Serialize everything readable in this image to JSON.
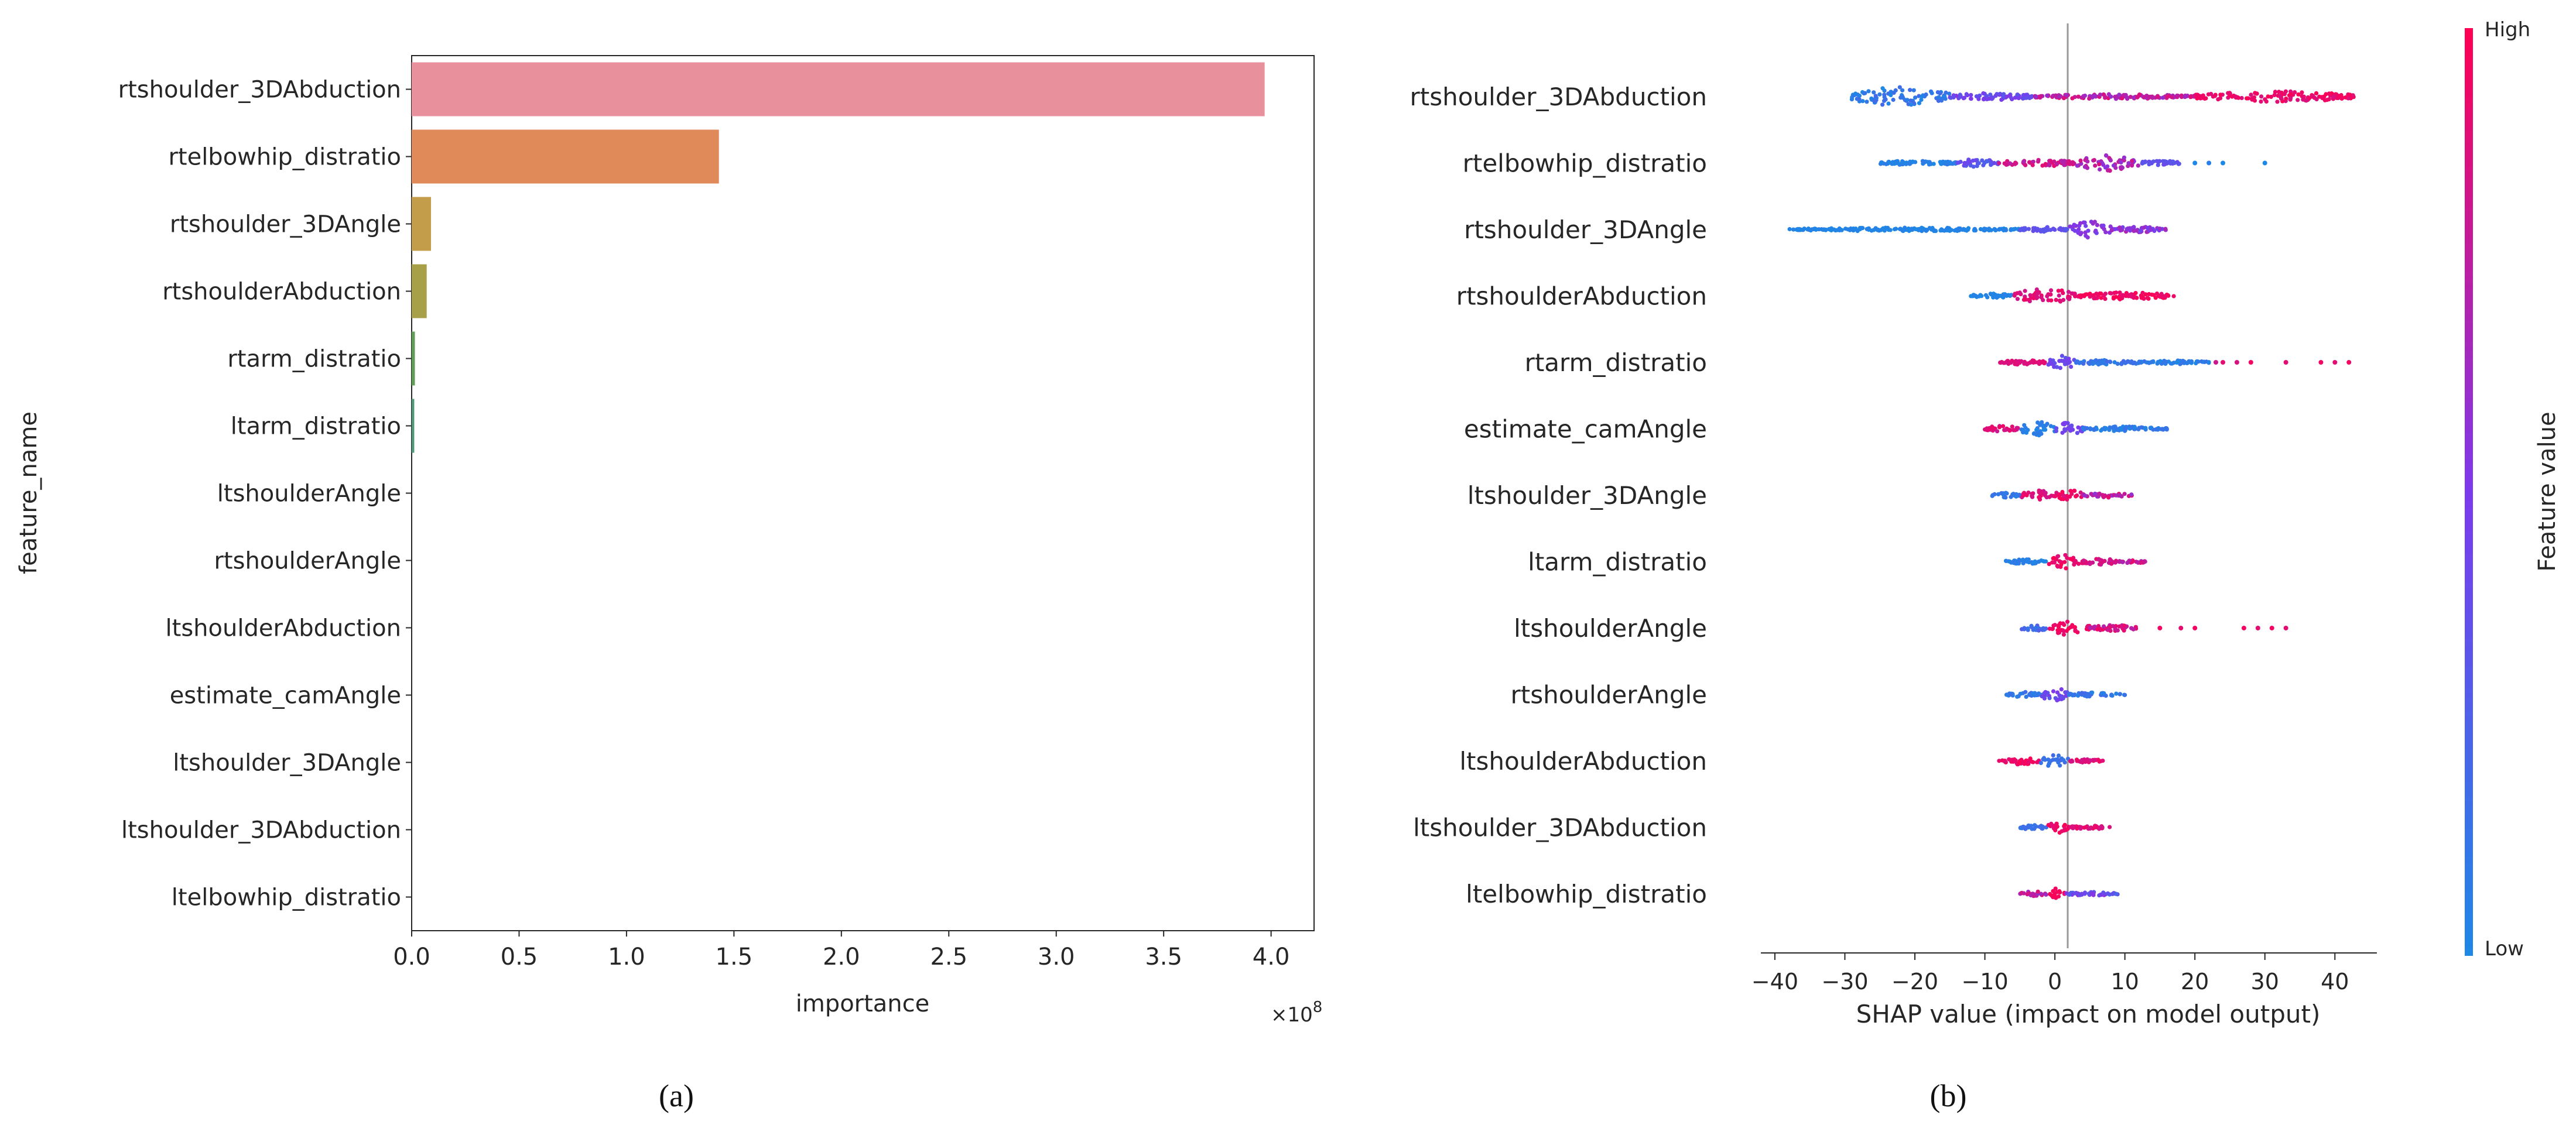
{
  "chart_data": [
    {
      "type": "bar",
      "orientation": "horizontal",
      "panel_label": "(a)",
      "xlabel": "importance",
      "ylabel": "feature_name",
      "x_multiplier": "×10",
      "x_multiplier_exponent": "8",
      "xlim": [
        0,
        4.2
      ],
      "x_ticks": [
        0.0,
        0.5,
        1.0,
        1.5,
        2.0,
        2.5,
        3.0,
        3.5,
        4.0
      ],
      "x_tick_labels": [
        "0.0",
        "0.5",
        "1.0",
        "1.5",
        "2.0",
        "2.5",
        "3.0",
        "3.5",
        "4.0"
      ],
      "grid": false,
      "categories": [
        "rtshoulder_3DAbduction",
        "rtelbowhip_distratio",
        "rtshoulder_3DAngle",
        "rtshoulderAbduction",
        "rtarm_distratio",
        "ltarm_distratio",
        "ltshoulderAngle",
        "rtshoulderAngle",
        "ltshoulderAbduction",
        "estimate_camAngle",
        "ltshoulder_3DAngle",
        "ltshoulder_3DAbduction",
        "ltelbowhip_distratio"
      ],
      "values": [
        3.97,
        1.43,
        0.09,
        0.07,
        0.015,
        0.012,
        0,
        0,
        0,
        0,
        0,
        0,
        0
      ],
      "colors": [
        "#e8909c",
        "#e08a5a",
        "#c49d4a",
        "#a8a048",
        "#5e9e55",
        "#4a9a78",
        "#4a9a90",
        "#4d98a8",
        "#5aa0c4",
        "#8a9ad6",
        "#b08ad6",
        "#d27ccc",
        "#e07ab0"
      ]
    },
    {
      "type": "scatter",
      "subtype": "shap_beeswarm",
      "panel_label": "(b)",
      "xlabel": "SHAP value (impact on model output)",
      "xlim": [
        -42,
        46
      ],
      "x_ticks": [
        -40,
        -30,
        -20,
        -10,
        0,
        10,
        20,
        30,
        40
      ],
      "x_tick_labels": [
        "−40",
        "−30",
        "−20",
        "−10",
        "0",
        "10",
        "20",
        "30",
        "40"
      ],
      "grid": false,
      "categories": [
        "rtshoulder_3DAbduction",
        "rtelbowhip_distratio",
        "rtshoulder_3DAngle",
        "rtshoulderAbduction",
        "rtarm_distratio",
        "estimate_camAngle",
        "ltshoulder_3DAngle",
        "ltarm_distratio",
        "ltshoulderAngle",
        "rtshoulderAngle",
        "ltshoulderAbduction",
        "ltshoulder_3DAbduction",
        "ltelbowhip_distratio"
      ],
      "series": [
        {
          "feature": "rtshoulder_3DAbduction",
          "segments": [
            [
              -29,
              -15,
              0.0,
              0.2,
              16
            ],
            [
              -15,
              -3,
              0.3,
              0.55,
              6
            ],
            [
              -3,
              20,
              0.6,
              0.9,
              4
            ],
            [
              20,
              43,
              0.85,
              1.0,
              9
            ]
          ],
          "outliers": []
        },
        {
          "feature": "rtelbowhip_distratio",
          "segments": [
            [
              -25,
              -14,
              0.0,
              0.1,
              4
            ],
            [
              -14,
              -8,
              0.2,
              0.45,
              7
            ],
            [
              -8,
              3,
              0.7,
              0.9,
              6
            ],
            [
              3,
              12,
              0.55,
              0.85,
              14
            ],
            [
              12,
              18,
              0.3,
              0.4,
              4
            ]
          ],
          "outliers": [
            [
              20,
              0.0
            ],
            [
              22,
              0.05
            ],
            [
              24,
              0.0
            ],
            [
              30,
              0.0
            ]
          ]
        },
        {
          "feature": "rtshoulder_3DAngle",
          "segments": [
            [
              -38,
              -5,
              0.0,
              0.05,
              3
            ],
            [
              -5,
              2,
              0.3,
              0.4,
              4
            ],
            [
              2,
              8,
              0.45,
              0.6,
              14
            ],
            [
              8,
              16,
              0.4,
              0.7,
              5
            ]
          ],
          "outliers": []
        },
        {
          "feature": "rtshoulderAbduction",
          "segments": [
            [
              -12,
              -6,
              0.0,
              0.05,
              4
            ],
            [
              -6,
              3,
              0.8,
              0.95,
              12
            ],
            [
              3,
              17,
              0.88,
              1.0,
              6
            ]
          ],
          "outliers": []
        },
        {
          "feature": "rtarm_distratio",
          "segments": [
            [
              -8,
              -1,
              0.85,
              0.9,
              4
            ],
            [
              -1,
              3,
              0.3,
              0.5,
              11
            ],
            [
              3,
              13,
              0.05,
              0.2,
              4
            ],
            [
              13,
              22,
              0.0,
              0.15,
              3
            ]
          ],
          "outliers": [
            [
              23,
              0.8
            ],
            [
              24,
              0.9
            ],
            [
              26,
              0.85
            ],
            [
              28,
              0.95
            ],
            [
              33,
              0.9
            ],
            [
              38,
              0.95
            ],
            [
              40,
              0.9
            ],
            [
              42,
              0.95
            ]
          ]
        },
        {
          "feature": "estimate_camAngle",
          "segments": [
            [
              -10,
              -5,
              0.75,
              0.95,
              5
            ],
            [
              -5,
              0,
              0.0,
              0.1,
              12
            ],
            [
              0,
              4,
              0.35,
              0.55,
              11
            ],
            [
              4,
              16,
              0.0,
              0.15,
              4
            ]
          ],
          "outliers": []
        },
        {
          "feature": "ltshoulder_3DAngle",
          "segments": [
            [
              -9,
              -5,
              0.05,
              0.15,
              4
            ],
            [
              -5,
              0,
              0.8,
              0.95,
              8
            ],
            [
              0,
              4,
              0.85,
              1.0,
              11
            ],
            [
              4,
              11,
              0.55,
              0.95,
              4
            ]
          ],
          "outliers": []
        },
        {
          "feature": "ltarm_distratio",
          "segments": [
            [
              -7,
              -1,
              0.0,
              0.1,
              4
            ],
            [
              -1,
              4,
              0.85,
              1.0,
              12
            ],
            [
              4,
              9,
              0.75,
              0.9,
              6
            ],
            [
              9,
              13,
              0.6,
              0.95,
              3
            ]
          ],
          "outliers": []
        },
        {
          "feature": "ltshoulderAngle",
          "segments": [
            [
              -5,
              -1,
              0.1,
              0.3,
              5
            ],
            [
              -1,
              5,
              0.88,
              1.0,
              12
            ],
            [
              5,
              12,
              0.7,
              0.95,
              5
            ]
          ],
          "outliers": [
            [
              15,
              0.95
            ],
            [
              18,
              0.9
            ],
            [
              20,
              0.95
            ],
            [
              27,
              0.95
            ],
            [
              29,
              0.9
            ],
            [
              31,
              0.95
            ],
            [
              33,
              0.9
            ]
          ]
        },
        {
          "feature": "rtshoulderAngle",
          "segments": [
            [
              -7,
              -2,
              0.05,
              0.2,
              5
            ],
            [
              -2,
              2,
              0.3,
              0.55,
              11
            ],
            [
              2,
              10,
              0.0,
              0.2,
              4
            ]
          ],
          "outliers": []
        },
        {
          "feature": "ltshoulderAbduction",
          "segments": [
            [
              -8,
              -2,
              0.88,
              1.0,
              6
            ],
            [
              -2,
              2,
              0.1,
              0.2,
              10
            ],
            [
              2,
              7,
              0.8,
              0.95,
              3
            ]
          ],
          "outliers": []
        },
        {
          "feature": "ltshoulder_3DAbduction",
          "segments": [
            [
              -5,
              -1,
              0.1,
              0.2,
              4
            ],
            [
              -1,
              2,
              0.88,
              1.0,
              10
            ],
            [
              2,
              8,
              0.8,
              0.95,
              3
            ]
          ],
          "outliers": []
        },
        {
          "feature": "ltelbowhip_distratio",
          "segments": [
            [
              -5,
              -1,
              0.6,
              0.9,
              4
            ],
            [
              -1,
              1.5,
              0.92,
              1.0,
              9
            ],
            [
              1.5,
              9,
              0.2,
              0.6,
              3
            ]
          ],
          "outliers": []
        }
      ],
      "colorbar": {
        "label": "Feature value",
        "high_label": "High",
        "low_label": "Low",
        "low_color": "#1e88e5",
        "high_color": "#ff0052"
      },
      "zero_line": true
    }
  ],
  "captions": {
    "a": "(a)",
    "b": "(b)"
  },
  "colors": {
    "axis": "#262626",
    "zero_line": "#999999",
    "shap_low": "#1e88e5",
    "shap_mid": "#7c3aed",
    "shap_high": "#ff0052"
  }
}
